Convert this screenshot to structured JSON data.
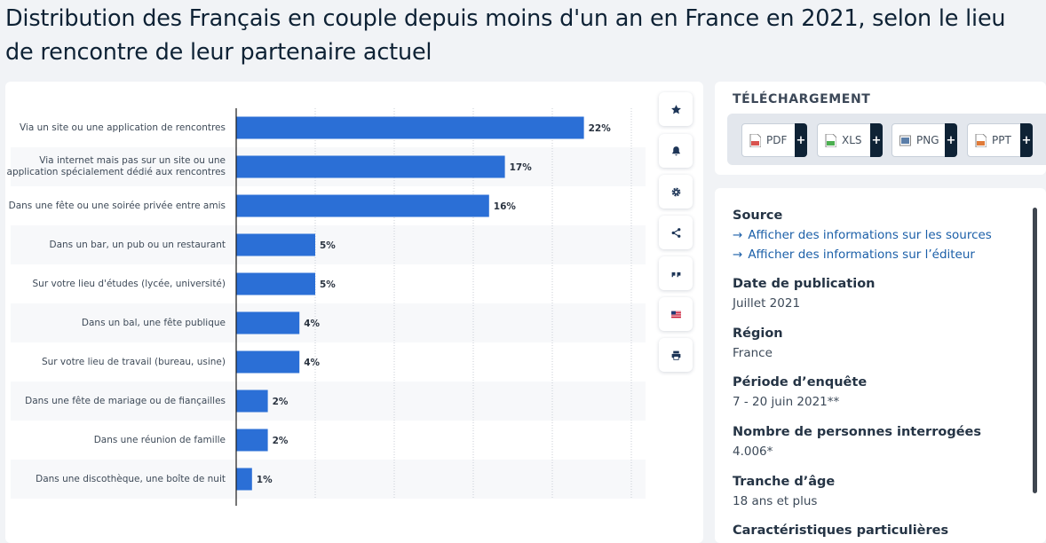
{
  "page": {
    "title": "Distribution des Français en couple depuis moins d'un an en France en 2021, selon le lieu de rencontre de leur partenaire actuel"
  },
  "toolbar": {
    "icons": [
      "star-icon",
      "bell-icon",
      "gear-icon",
      "share-icon",
      "quote-icon",
      "flag-icon",
      "print-icon"
    ]
  },
  "download": {
    "title": "TÉLÉCHARGEMENT",
    "buttons": [
      {
        "label": "PDF",
        "plus": "+",
        "color": "#d9534f"
      },
      {
        "label": "XLS",
        "plus": "+",
        "color": "#4caf50"
      },
      {
        "label": "PNG",
        "plus": "+",
        "color": "#5b7ea8"
      },
      {
        "label": "PPT",
        "plus": "+",
        "color": "#e07b39"
      }
    ]
  },
  "info": {
    "source_label": "Source",
    "source_link_1": "Afficher des informations sur les sources",
    "source_link_2": "Afficher des informations sur l’éditeur",
    "date_label": "Date de publication",
    "date_value": "Juillet 2021",
    "region_label": "Région",
    "region_value": "France",
    "period_label": "Période d’enquête",
    "period_value": "7 - 20 juin 2021**",
    "count_label": "Nombre de personnes interrogées",
    "count_value": "4.006*",
    "age_label": "Tranche d’âge",
    "age_value": "18 ans et plus",
    "special_label": "Caractéristiques particulières"
  },
  "chart_data": {
    "type": "bar",
    "orientation": "horizontal",
    "categories": [
      "Via un site ou une application de rencontres",
      "Via internet mais pas sur un site ou une application spécialement dédié aux rencontres",
      "Dans une fête ou une soirée privée entre amis",
      "Dans un bar, un pub ou un restaurant",
      "Sur votre lieu d'études (lycée, université)",
      "Dans un bal, une fête publique",
      "Sur votre lieu de travail (bureau, usine)",
      "Dans une fête de mariage ou de fiançailles",
      "Dans une réunion de famille",
      "Dans une discothèque, une boîte de nuit"
    ],
    "values": [
      22,
      17,
      16,
      5,
      5,
      4,
      4,
      2,
      2,
      1
    ],
    "value_labels": [
      "22%",
      "17%",
      "16%",
      "5%",
      "5%",
      "4%",
      "4%",
      "2%",
      "2%",
      "1%"
    ],
    "xlim": [
      0,
      25
    ],
    "grid": true,
    "bar_color": "#2b6fd6"
  }
}
